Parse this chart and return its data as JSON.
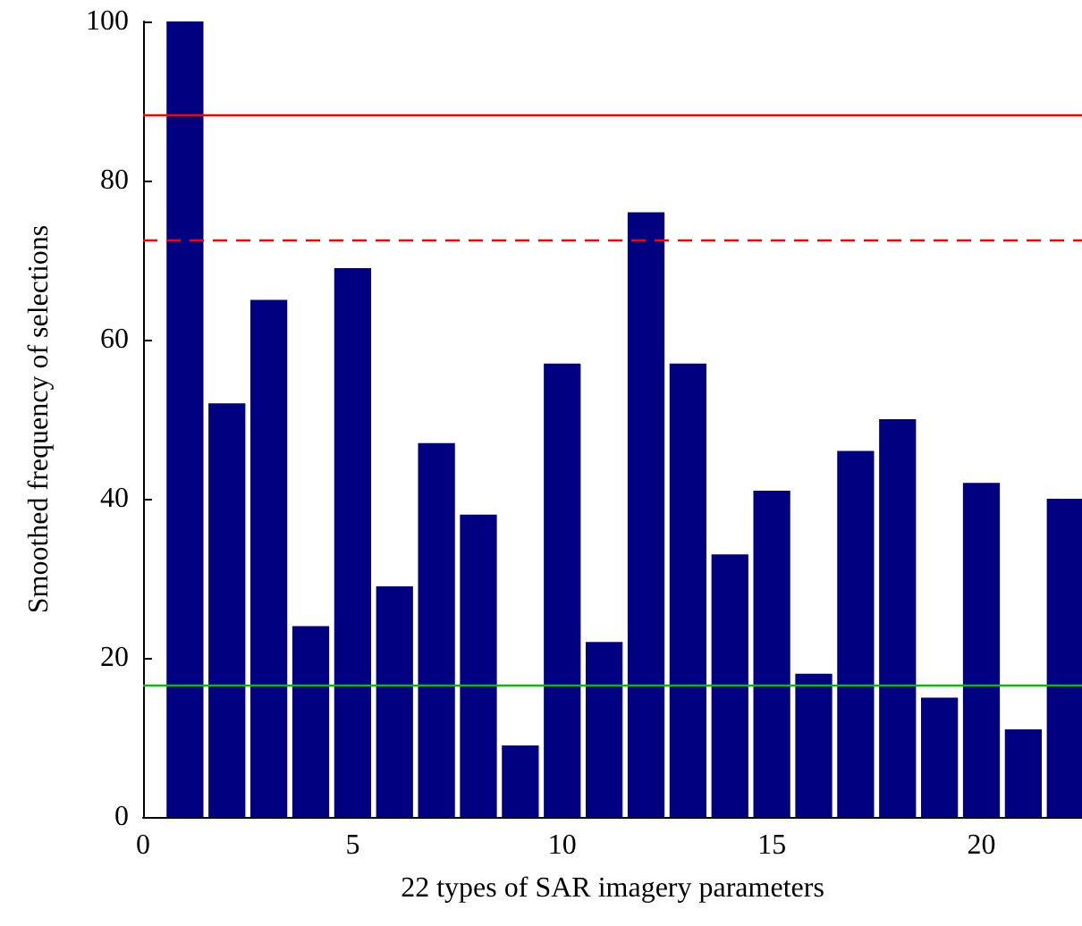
{
  "chart_data": {
    "type": "bar",
    "xlabel": "22 types of SAR imagery parameters",
    "ylabel": "Smoothed frequency of selections",
    "x": [
      1,
      2,
      3,
      4,
      5,
      6,
      7,
      8,
      9,
      10,
      11,
      12,
      13,
      14,
      15,
      16,
      17,
      18,
      19,
      20,
      21,
      22
    ],
    "values": [
      100,
      52,
      65,
      24,
      69,
      29,
      47,
      38,
      9,
      57,
      22,
      76,
      57,
      33,
      41,
      18,
      46,
      50,
      15,
      42,
      11,
      40
    ],
    "color": "#000080",
    "xlim": [
      0,
      22.4
    ],
    "xticks": [
      0,
      5,
      10,
      15,
      20
    ],
    "ylim": [
      0,
      100
    ],
    "yticks": [
      0,
      20,
      40,
      60,
      80,
      100
    ],
    "grid": false,
    "ref_lines": [
      {
        "axis": "y",
        "value": 88.3,
        "color": "#ff0000",
        "line_style": "solid"
      },
      {
        "axis": "y",
        "value": 72.5,
        "color": "#ff0000",
        "line_style": "dashed"
      },
      {
        "axis": "y",
        "value": 16.5,
        "color": "#00c000",
        "line_style": "solid"
      }
    ]
  }
}
